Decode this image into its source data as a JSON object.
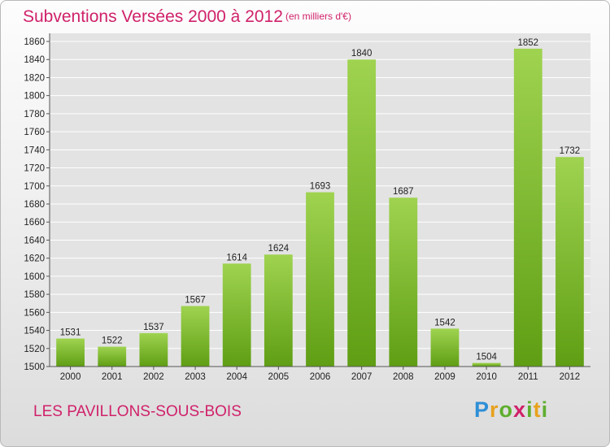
{
  "header": {
    "title": "Subventions Versées 2000 à 2012",
    "subtitle": "(en milliers d'€)"
  },
  "footer": {
    "commune": "LES PAVILLONS-SOUS-BOIS",
    "logo_text": "Proxiti"
  },
  "colors": {
    "title": "#d0216a",
    "bar_light": "#9fd350",
    "bar_dark": "#5f9e14",
    "grid": "#ffffff",
    "plot_bg": "#e3e3e3"
  },
  "chart_data": {
    "type": "bar",
    "categories": [
      "2000",
      "2001",
      "2002",
      "2003",
      "2004",
      "2005",
      "2006",
      "2007",
      "2008",
      "2009",
      "2010",
      "2011",
      "2012"
    ],
    "values": [
      1531,
      1522,
      1537,
      1567,
      1614,
      1624,
      1693,
      1840,
      1687,
      1542,
      1504,
      1852,
      1732
    ],
    "title": "Subventions Versées 2000 à 2012",
    "subtitle": "(en milliers d'€)",
    "ylim": [
      1500,
      1860
    ],
    "yticks": [
      1500,
      1520,
      1540,
      1560,
      1580,
      1600,
      1620,
      1640,
      1660,
      1680,
      1700,
      1720,
      1740,
      1760,
      1780,
      1800,
      1820,
      1840,
      1860
    ],
    "grid": true
  }
}
